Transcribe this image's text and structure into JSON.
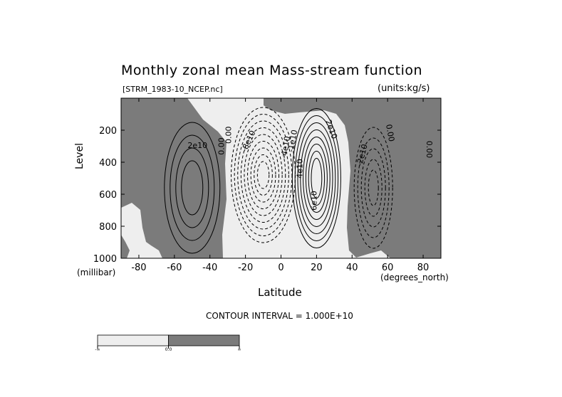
{
  "chart_data": {
    "type": "contour",
    "title": "Monthly zonal mean Mass-stream function",
    "file_label": "[STRM_1983-10_NCEP.nc]",
    "units_label": "(units:kg/s)",
    "xlabel": "Latitude",
    "ylabel": "Level",
    "x_unit": "(degrees_north)",
    "y_unit": "(millibar)",
    "xlim": [
      -90,
      90
    ],
    "ylim": [
      1000,
      0
    ],
    "x_ticks": [
      "-80",
      "-60",
      "-40",
      "-20",
      "0",
      "20",
      "40",
      "60",
      "80"
    ],
    "y_ticks": [
      "200",
      "400",
      "600",
      "800",
      "1000"
    ],
    "contour_interval": "CONTOUR INTERVAL = 1.000E+10",
    "contour_labels": [
      "2e10",
      "0.00",
      "0.00",
      "-8e10",
      "-4e10",
      "-1e10",
      "2e10",
      "4e10",
      "6e10",
      "-2e10",
      "0.00",
      "0.00"
    ],
    "cells": [
      {
        "sign": "positive",
        "center_lat": -50,
        "center_level": 560,
        "peak": 40000000000.0
      },
      {
        "sign": "negative",
        "center_lat": -10,
        "center_level": 480,
        "peak": -90000000000.0
      },
      {
        "sign": "positive",
        "center_lat": 20,
        "center_level": 500,
        "peak": 80000000000.0
      },
      {
        "sign": "negative",
        "center_lat": 52,
        "center_level": 560,
        "peak": -50000000000.0
      }
    ],
    "colorbar": {
      "labels": [
        "-∞",
        "0.0",
        "∞"
      ],
      "colors": [
        "#eeeeee",
        "#7b7b7b"
      ]
    }
  }
}
